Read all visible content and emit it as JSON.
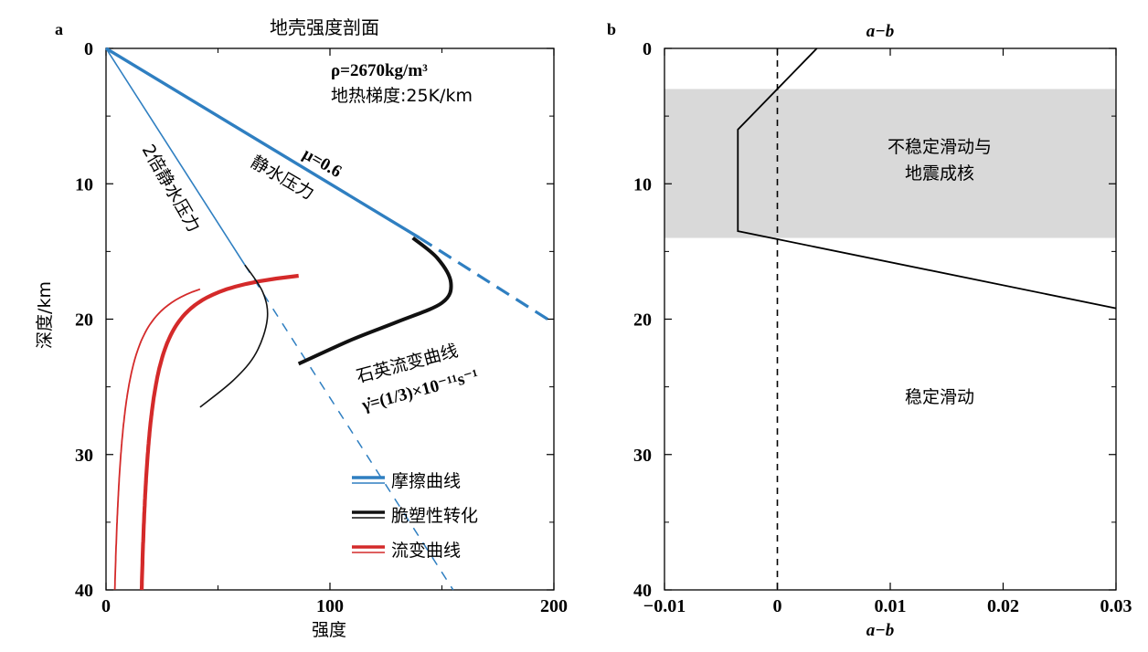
{
  "chart_data": [
    {
      "panel": "a",
      "type": "line",
      "title": "地壳强度剖面",
      "xlabel": "强度",
      "ylabel": "深度/km",
      "xlim": [
        0,
        200
      ],
      "ylim": [
        40,
        0
      ],
      "xticks": [
        "0",
        "100",
        "200"
      ],
      "yticks": [
        "0",
        "10",
        "20",
        "30",
        "40"
      ],
      "grid": false,
      "legend_position": "bottom-right",
      "annotations": {
        "density": "ρ=2670kg/m³",
        "gradient": "地热梯度:25K/km",
        "mu": "μ=0.6",
        "hydrostatic": "静水压力",
        "double_hydrostatic": "2倍静水压力",
        "quartz": "石英流变曲线",
        "strain_rate": "γ̇=(1/3)×10⁻¹¹s⁻¹"
      },
      "legend": [
        {
          "label": "摩擦曲线",
          "color": "#2f7fc1"
        },
        {
          "label": "脆塑性转化",
          "color": "#111111"
        },
        {
          "label": "流变曲线",
          "color": "#d42a2a"
        }
      ],
      "series": [
        {
          "kind": "friction-hydrostatic",
          "color": "#2f7fc1",
          "points": [
            [
              0,
              0
            ],
            [
              140,
              14
            ],
            [
              200,
              20.3
            ]
          ],
          "solid_until": 140
        },
        {
          "kind": "friction-double",
          "color": "#2f7fc1",
          "points": [
            [
              0,
              0
            ],
            [
              62,
              16
            ],
            [
              155,
              40
            ]
          ],
          "solid_until": 62
        },
        {
          "kind": "transition-hydrostatic",
          "color": "#111111",
          "points": [
            [
              137,
              14
            ],
            [
              148,
              15.5
            ],
            [
              154,
              17.3
            ],
            [
              150,
              18.8
            ],
            [
              130,
              20.2
            ],
            [
              110,
              21.5
            ],
            [
              86,
              23.3
            ]
          ]
        },
        {
          "kind": "transition-double",
          "color": "#111111",
          "points": [
            [
              62,
              16
            ],
            [
              70,
              18
            ],
            [
              72,
              20
            ],
            [
              67,
              22.5
            ],
            [
              57,
              24.5
            ],
            [
              42,
              26.5
            ]
          ]
        }
      ],
      "flow_law": {
        "color": "#d42a2a",
        "A": 96,
        "B": 15.5,
        "offsets": [
          0,
          12
        ],
        "y_from": 18.6,
        "y_to": 40,
        "solid_from_x_main": 86,
        "solid_from_x_thin": 42
      }
    },
    {
      "panel": "b",
      "type": "line",
      "title": "a−b",
      "xlabel": "a−b",
      "xlim": [
        -0.01,
        0.03
      ],
      "ylim": [
        40,
        0
      ],
      "xticks": [
        "−0.01",
        "0",
        "0.01",
        "0.02",
        "0.03"
      ],
      "yticks": [
        "0",
        "10",
        "20",
        "30",
        "40"
      ],
      "grid": false,
      "shaded_band": {
        "from": 3,
        "to": 14,
        "color": "#d9d9d9"
      },
      "labels": {
        "unstable_line1": "不稳定滑动与",
        "unstable_line2": "地震成核",
        "stable": "稳定滑动"
      },
      "series": [
        {
          "name": "",
          "x": [
            0.0035,
            -0.0035,
            -0.0035,
            0.03
          ],
          "y": [
            0,
            6,
            13.5,
            19.2
          ]
        }
      ],
      "zero_line": 0
    }
  ]
}
